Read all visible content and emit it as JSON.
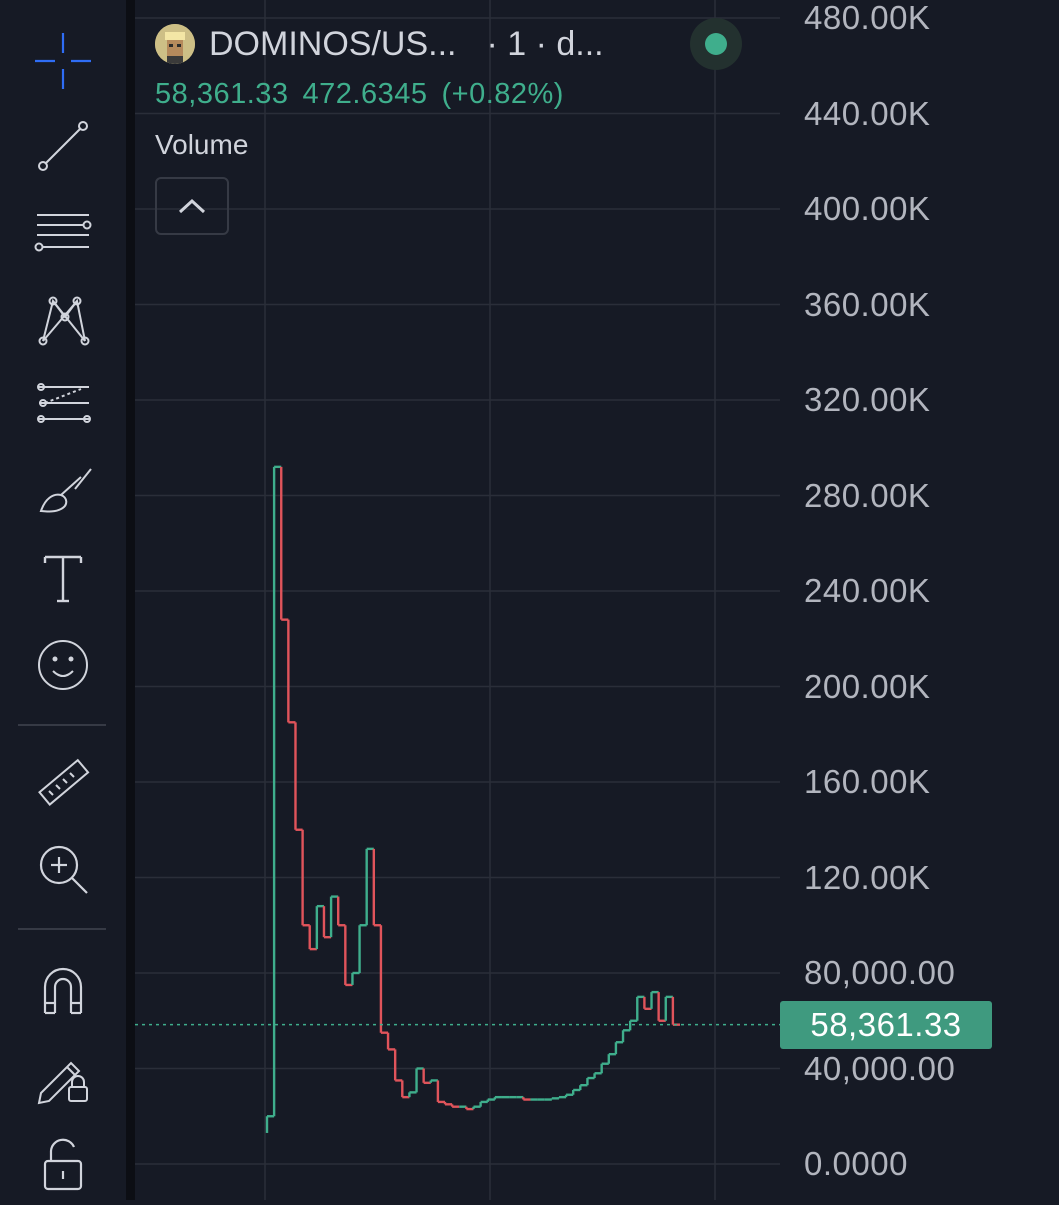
{
  "legend": {
    "symbol": "DOMINOS/US...",
    "interval": "· 1 · d...",
    "last_price": "58,361.33",
    "change": "472.6345",
    "change_percent": "(+0.82%)",
    "indicator": "Volume",
    "status_color": "#3fae8c"
  },
  "toolbar": {
    "tools": [
      {
        "name": "crosshair-icon"
      },
      {
        "name": "trend-line-icon"
      },
      {
        "name": "horizontal-lines-icon"
      },
      {
        "name": "pattern-icon"
      },
      {
        "name": "fib-projection-icon"
      },
      {
        "name": "brush-icon"
      },
      {
        "name": "text-icon"
      },
      {
        "name": "emoji-icon"
      },
      {
        "name": "ruler-icon"
      },
      {
        "name": "zoom-in-icon"
      },
      {
        "name": "magnet-icon"
      },
      {
        "name": "lock-drawings-icon"
      },
      {
        "name": "unlock-icon"
      }
    ]
  },
  "price_axis": {
    "ticks": [
      "480.00K",
      "440.00K",
      "400.00K",
      "360.00K",
      "320.00K",
      "280.00K",
      "240.00K",
      "200.00K",
      "160.00K",
      "120.00K",
      "80,000.00",
      "40,000.00",
      "0.0000"
    ],
    "last_price_label": "58,361.33"
  },
  "colors": {
    "up": "#3fae8c",
    "down": "#e0545b",
    "background": "#161a25",
    "grid": "#2a2e39"
  },
  "chart_data": {
    "type": "line",
    "title": "",
    "xlabel": "",
    "ylabel": "",
    "ylim": [
      0,
      480000
    ],
    "grid": true,
    "last_price": 58361.33,
    "series": [
      {
        "values": [
          13000,
          20000,
          292000,
          228000,
          185000,
          140000,
          100000,
          90000,
          108000,
          95000,
          112000,
          100000,
          75000,
          80000,
          100000,
          132000,
          100000,
          55000,
          48000,
          35000,
          28000,
          30000,
          40000,
          34000,
          35000,
          26000,
          25000,
          24000,
          24000,
          23000,
          24000,
          26000,
          27000,
          28000,
          28000,
          28000,
          28000,
          27000,
          27000,
          27000,
          27000,
          27500,
          28000,
          29000,
          31000,
          33000,
          36000,
          38000,
          42000,
          46000,
          51000,
          56000,
          60000,
          70000,
          65000,
          72000,
          60000,
          70000,
          58361
        ]
      }
    ]
  }
}
